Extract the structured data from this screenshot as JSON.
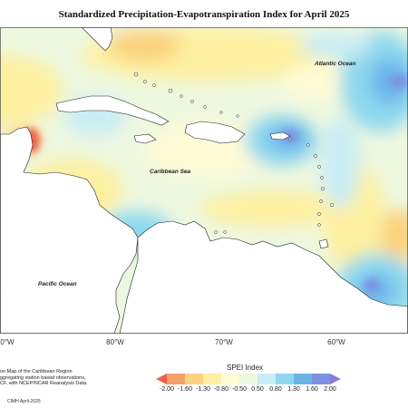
{
  "title": "Standardized Precipitation-Evapotranspiration Index for April 2025",
  "map_labels": {
    "atlantic": "Atlantic Ocean",
    "caribbean": "Caribbean Sea",
    "pacific": "Pacific Ocean"
  },
  "longitude_ticks": [
    "0°W",
    "80°W",
    "70°W",
    "60°W"
  ],
  "credit_lines": [
    "on Map of the Caribbean Region",
    "ggregating station based observations,",
    "CF, with NCEP/NCAR Reanalysis Data."
  ],
  "stamp": "CIMH April-2025",
  "legend": {
    "title": "SPEI Index",
    "labels": [
      "-2.00",
      "-1.60",
      "-1.30",
      "-0.80",
      "-0.50",
      "0.50",
      "0.80",
      "1.30",
      "1.60",
      "2.00"
    ],
    "colors": [
      "#f0604a",
      "#f6a06a",
      "#fbd27e",
      "#fdf0a0",
      "#fffbd6",
      "#eef8e0",
      "#c9edf4",
      "#8ed8ef",
      "#6ab4ea",
      "#7f92e2",
      "#8a7ad8"
    ]
  }
}
